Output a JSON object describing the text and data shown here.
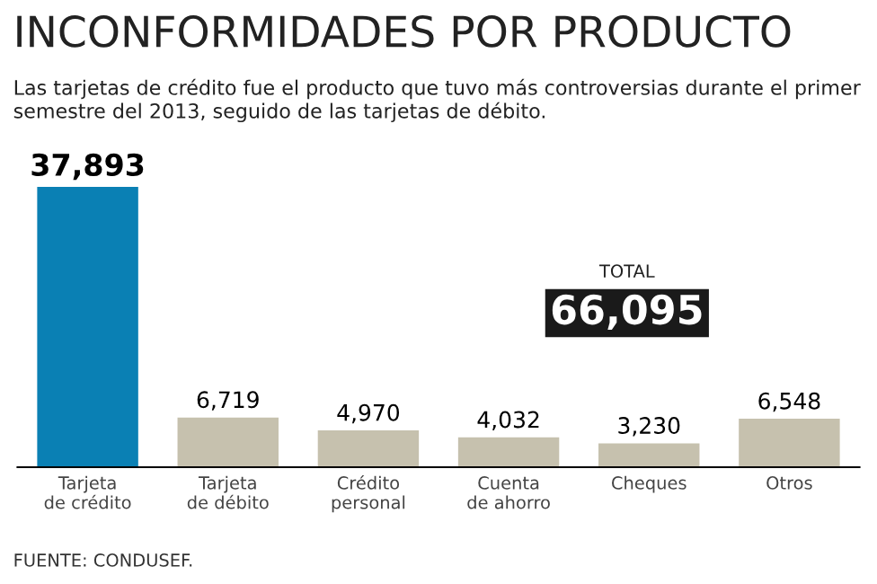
{
  "chart_data": {
    "type": "bar",
    "title": "INCONFORMIDADES POR PRODUCTO",
    "subtitle": "Las tarjetas de crédito fue el producto que tuvo más controversias durante el primer semestre del 2013, seguido de las tarjetas de débito.",
    "categories": [
      "Tarjeta\nde crédito",
      "Tarjeta\nde débito",
      "Crédito\npersonal",
      "Cuenta\nde ahorro",
      "Cheques",
      "Otros"
    ],
    "values": [
      37893,
      6719,
      4970,
      4032,
      3230,
      6548
    ],
    "colors": [
      "#0a80b4",
      "#c6c1ae",
      "#c6c1ae",
      "#c6c1ae",
      "#c6c1ae",
      "#c6c1ae"
    ],
    "value_labels": [
      "37,893",
      "6,719",
      "4,970",
      "4,032",
      "3,230",
      "6,548"
    ],
    "annotations": [
      "TOTAL",
      "66,095",
      "FUENTE: CONDUSEF."
    ]
  }
}
